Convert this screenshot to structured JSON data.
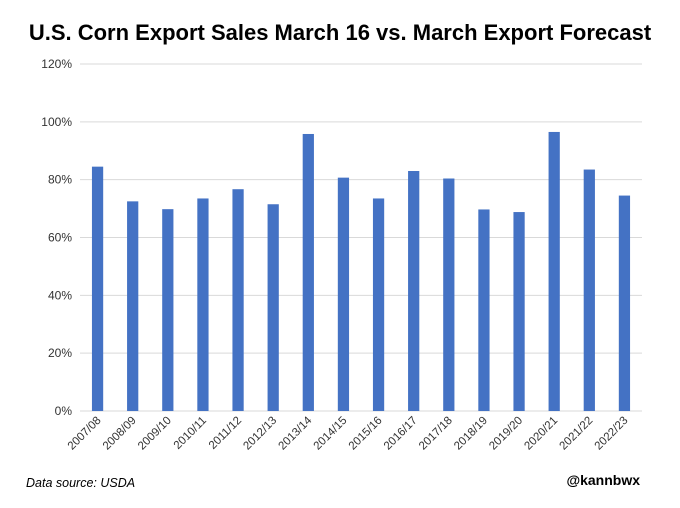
{
  "chart_data": {
    "type": "bar",
    "title": "U.S. Corn Export Sales March 16 vs. March Export Forecast",
    "categories": [
      "2007/08",
      "2008/09",
      "2009/10",
      "2010/11",
      "2011/12",
      "2012/13",
      "2013/14",
      "2014/15",
      "2015/16",
      "2016/17",
      "2017/18",
      "2018/19",
      "2019/20",
      "2020/21",
      "2021/22",
      "2022/23"
    ],
    "values": [
      84.5,
      72.5,
      69.8,
      73.5,
      76.7,
      71.5,
      95.8,
      80.7,
      73.5,
      83.0,
      80.4,
      69.7,
      68.8,
      96.5,
      83.5,
      74.5
    ],
    "ylim": [
      0,
      120
    ],
    "yticks": [
      "0%",
      "20%",
      "40%",
      "60%",
      "80%",
      "100%",
      "120%"
    ],
    "grid": true,
    "bar_color": "#4472C4",
    "grid_color": "#d9d9d9"
  },
  "footer": {
    "source": "Data source: USDA",
    "handle": "@kannbwx"
  }
}
